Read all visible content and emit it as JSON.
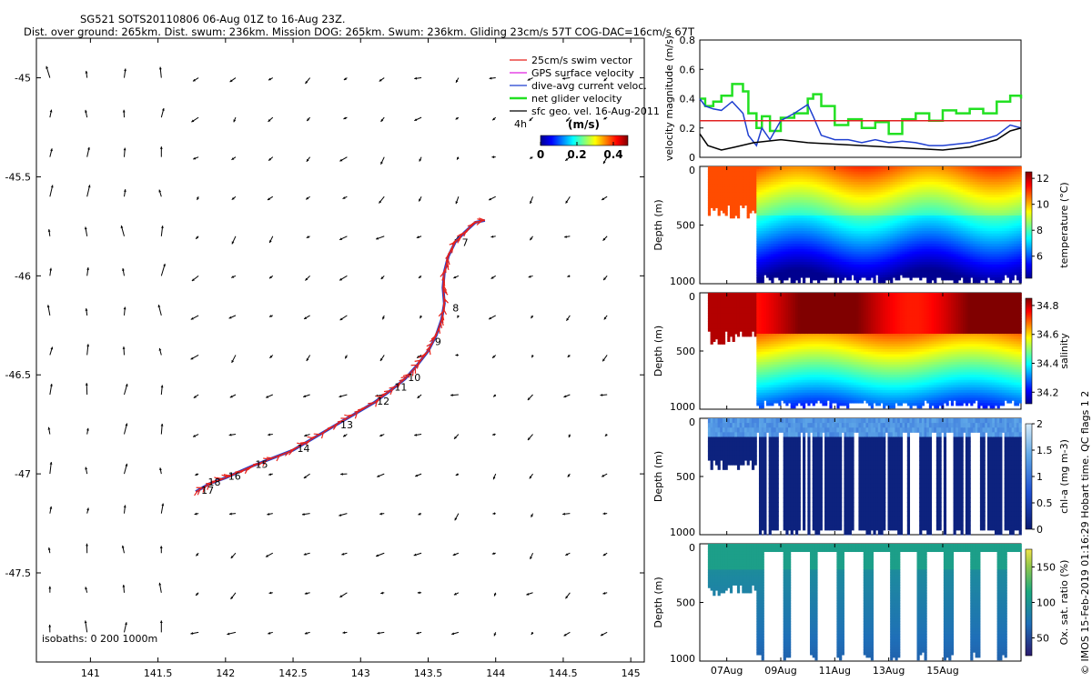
{
  "header": {
    "title_line1": "SG521 SOTS20110806 06-Aug 01Z to 16-Aug 23Z.",
    "title_line2": "Dist. over ground: 265km. Dist. swum: 236km. Mission DOG: 265km. Swum: 236km. Gliding 23cm/s 57T COG-DAC=16cm/s 67T"
  },
  "credit": "© IMOS 15-Feb-2019 01:16:29 Hobart time. QC flags 1  2",
  "colors": {
    "swim": "#e8221a",
    "gps": "#e020e0",
    "dac": "#1f3fd0",
    "net": "#22e022",
    "geo": "#000000",
    "mean_line": "#e02020"
  },
  "chart_data": [
    {
      "id": "map",
      "type": "scatter",
      "subtype": "trajectory-vector-map",
      "xlim": [
        140.6,
        145.1
      ],
      "ylim": [
        -47.95,
        -44.8
      ],
      "xticks": [
        "141",
        "141.5",
        "142",
        "142.5",
        "143",
        "143.5",
        "144",
        "144.5",
        "145"
      ],
      "xtick_values": [
        141,
        141.5,
        142,
        142.5,
        143,
        143.5,
        144,
        144.5,
        145
      ],
      "yticks": [
        "-45",
        "-45.5",
        "-46",
        "-46.5",
        "-47",
        "-47.5"
      ],
      "ytick_values": [
        -45,
        -45.5,
        -46,
        -46.5,
        -47,
        -47.5
      ],
      "legend": [
        "25cm/s swim vector",
        "GPS surface velocity",
        "dive-avg current veloc.",
        "net glider velocity",
        "sfc geo. vel. 16-Aug-2011"
      ],
      "legend_label_extra": "4h",
      "colorbar_title": "(m/s)",
      "colorbar_ticks": [
        "0",
        "0.2",
        "0.4"
      ],
      "colorbar_tick_values": [
        0,
        0.2,
        0.4
      ],
      "colorbar_range": [
        0,
        0.48
      ],
      "isobaths_label": "isobaths: 0    200   1000m",
      "track": [
        [
          143.92,
          -45.72
        ],
        [
          143.85,
          -45.73
        ],
        [
          143.77,
          -45.78
        ],
        [
          143.7,
          -45.83
        ],
        [
          143.65,
          -45.9
        ],
        [
          143.62,
          -45.98
        ],
        [
          143.61,
          -46.06
        ],
        [
          143.62,
          -46.14
        ],
        [
          143.6,
          -46.22
        ],
        [
          143.56,
          -46.3
        ],
        [
          143.5,
          -46.38
        ],
        [
          143.42,
          -46.45
        ],
        [
          143.33,
          -46.52
        ],
        [
          143.22,
          -46.58
        ],
        [
          143.1,
          -46.64
        ],
        [
          142.95,
          -46.7
        ],
        [
          142.8,
          -46.76
        ],
        [
          142.65,
          -46.82
        ],
        [
          142.5,
          -46.88
        ],
        [
          142.35,
          -46.92
        ],
        [
          142.2,
          -46.96
        ],
        [
          142.1,
          -46.99
        ],
        [
          142.0,
          -47.02
        ],
        [
          141.88,
          -47.05
        ],
        [
          141.78,
          -47.09
        ]
      ],
      "day_labels": [
        {
          "label": "7",
          "lon": 143.75,
          "lat": -45.85
        },
        {
          "label": "8",
          "lon": 143.68,
          "lat": -46.18
        },
        {
          "label": "9",
          "lon": 143.55,
          "lat": -46.35
        },
        {
          "label": "10",
          "lon": 143.35,
          "lat": -46.53
        },
        {
          "label": "11",
          "lon": 143.25,
          "lat": -46.58
        },
        {
          "label": "12",
          "lon": 143.12,
          "lat": -46.65
        },
        {
          "label": "13",
          "lon": 142.85,
          "lat": -46.77
        },
        {
          "label": "14",
          "lon": 142.53,
          "lat": -46.89
        },
        {
          "label": "15",
          "lon": 142.22,
          "lat": -46.97
        },
        {
          "label": "16",
          "lon": 142.02,
          "lat": -47.03
        },
        {
          "label": "18",
          "lon": 141.87,
          "lat": -47.06
        },
        {
          "label": "17",
          "lon": 141.82,
          "lat": -47.1
        }
      ]
    },
    {
      "id": "velocity",
      "type": "line",
      "ylabel": "velocity magnitude (m/s)",
      "ylim": [
        0,
        0.8
      ],
      "yticks": [
        "0",
        "0.2",
        "0.4",
        "0.6",
        "0.8"
      ],
      "ytick_values": [
        0,
        0.2,
        0.4,
        0.6,
        0.8
      ],
      "xlim": [
        0,
        11.9
      ],
      "series": [
        {
          "name": "net glider velocity",
          "color": "#22e022",
          "x": [
            0,
            0.2,
            0.5,
            0.8,
            1.2,
            1.6,
            1.8,
            2.1,
            2.3,
            2.6,
            3.0,
            3.5,
            4.0,
            4.2,
            4.5,
            5.0,
            5.5,
            6.0,
            6.5,
            7.0,
            7.5,
            8.0,
            8.5,
            9.0,
            9.5,
            10.0,
            10.5,
            11.0,
            11.5,
            11.9
          ],
          "y": [
            0.4,
            0.35,
            0.38,
            0.42,
            0.5,
            0.45,
            0.3,
            0.2,
            0.28,
            0.18,
            0.27,
            0.3,
            0.4,
            0.43,
            0.35,
            0.22,
            0.26,
            0.2,
            0.24,
            0.16,
            0.26,
            0.3,
            0.25,
            0.32,
            0.3,
            0.33,
            0.3,
            0.38,
            0.42,
            0.4
          ]
        },
        {
          "name": "dive-avg current veloc.",
          "color": "#1f3fd0",
          "x": [
            0,
            0.2,
            0.5,
            0.8,
            1.2,
            1.6,
            1.8,
            2.1,
            2.3,
            2.6,
            3.0,
            3.5,
            4.0,
            4.2,
            4.5,
            5.0,
            5.5,
            6.0,
            6.5,
            7.0,
            7.5,
            8.0,
            8.5,
            9.0,
            9.5,
            10.0,
            10.5,
            11.0,
            11.5,
            11.9
          ],
          "y": [
            0.4,
            0.35,
            0.33,
            0.32,
            0.38,
            0.3,
            0.15,
            0.08,
            0.2,
            0.12,
            0.25,
            0.3,
            0.36,
            0.28,
            0.15,
            0.12,
            0.12,
            0.1,
            0.12,
            0.1,
            0.11,
            0.1,
            0.08,
            0.08,
            0.09,
            0.1,
            0.12,
            0.15,
            0.22,
            0.2
          ]
        },
        {
          "name": "sfc geo. vel. 16-Aug-2011",
          "color": "#000000",
          "x": [
            0,
            0.3,
            0.8,
            1.3,
            2.0,
            3.0,
            4.0,
            5.0,
            6.0,
            7.0,
            8.0,
            9.0,
            10.0,
            11.0,
            11.5,
            11.9
          ],
          "y": [
            0.16,
            0.08,
            0.05,
            0.07,
            0.1,
            0.12,
            0.1,
            0.09,
            0.08,
            0.07,
            0.06,
            0.05,
            0.07,
            0.12,
            0.18,
            0.2
          ]
        },
        {
          "name": "25cm/s swim vector",
          "color": "#e02020",
          "x": [
            0,
            11.9
          ],
          "y": [
            0.25,
            0.25
          ]
        }
      ]
    },
    {
      "id": "temperature",
      "type": "heatmap",
      "ylabel": "Depth (m)",
      "ytick_labels": [
        "0",
        "500",
        "1000"
      ],
      "ytick_values": [
        0,
        500,
        1000
      ],
      "ylim": [
        1000,
        0
      ],
      "colorbar_label": "temperature (°C)",
      "colorbar_ticks": [
        "6",
        "8",
        "10",
        "12"
      ],
      "colorbar_tick_values": [
        6,
        8,
        10,
        12
      ],
      "colorbar_range": [
        4.3,
        12.5
      ]
    },
    {
      "id": "salinity",
      "type": "heatmap",
      "ylabel": "Depth (m)",
      "ytick_labels": [
        "0",
        "500",
        "1000"
      ],
      "ytick_values": [
        0,
        500,
        1000
      ],
      "ylim": [
        1000,
        0
      ],
      "colorbar_label": "salinity",
      "colorbar_ticks": [
        "34.2",
        "34.4",
        "34.6",
        "34.8"
      ],
      "colorbar_tick_values": [
        34.2,
        34.4,
        34.6,
        34.8
      ],
      "colorbar_range": [
        34.12,
        34.85
      ]
    },
    {
      "id": "chla",
      "type": "heatmap",
      "ylabel": "Depth (m)",
      "ytick_labels": [
        "0",
        "500",
        "1000"
      ],
      "ytick_values": [
        0,
        500,
        1000
      ],
      "ylim": [
        1000,
        0
      ],
      "colorbar_label": "chl-a (mg m-3)",
      "colorbar_ticks": [
        "0",
        "0.5",
        "1",
        "1.5",
        "2"
      ],
      "colorbar_tick_values": [
        0,
        0.5,
        1,
        1.5,
        2
      ],
      "colorbar_range": [
        0,
        2
      ]
    },
    {
      "id": "oxygen",
      "type": "heatmap",
      "ylabel": "Depth (m)",
      "ytick_labels": [
        "0",
        "500",
        "1000"
      ],
      "ytick_values": [
        0,
        500,
        1000
      ],
      "ylim": [
        1000,
        0
      ],
      "colorbar_label": "Ox. sat. ratio (%)",
      "colorbar_ticks": [
        "50",
        "100",
        "150"
      ],
      "colorbar_tick_values": [
        50,
        100,
        150
      ],
      "colorbar_range": [
        25,
        175
      ],
      "xlabel_ticks": [
        "07Aug",
        "09Aug",
        "11Aug",
        "13Aug",
        "15Aug"
      ],
      "xtick_days": [
        1,
        3,
        5,
        7,
        9
      ],
      "time_range_days": [
        0,
        11.9
      ]
    }
  ]
}
